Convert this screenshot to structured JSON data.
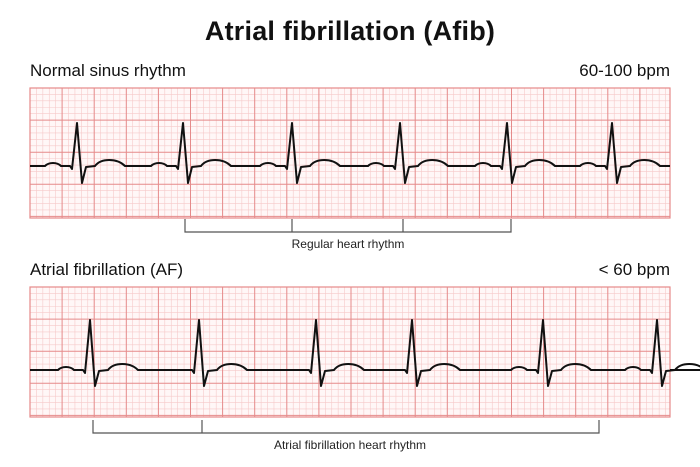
{
  "title": "Atrial fibrillation (Afib)",
  "panels": [
    {
      "label": "Normal sinus rhythm",
      "rate": "60-100 bpm",
      "bracket_label": "Regular heart rhythm"
    },
    {
      "label": "Atrial fibrillation (AF)",
      "rate": "< 60 bpm",
      "bracket_label": "Atrial fibrillation heart rhythm"
    }
  ],
  "colors": {
    "grid_major": "#e58a8a",
    "grid_minor": "#f6c9c9",
    "grid_bg": "#fff7f7",
    "trace": "#111111",
    "bracket": "#555555"
  }
}
